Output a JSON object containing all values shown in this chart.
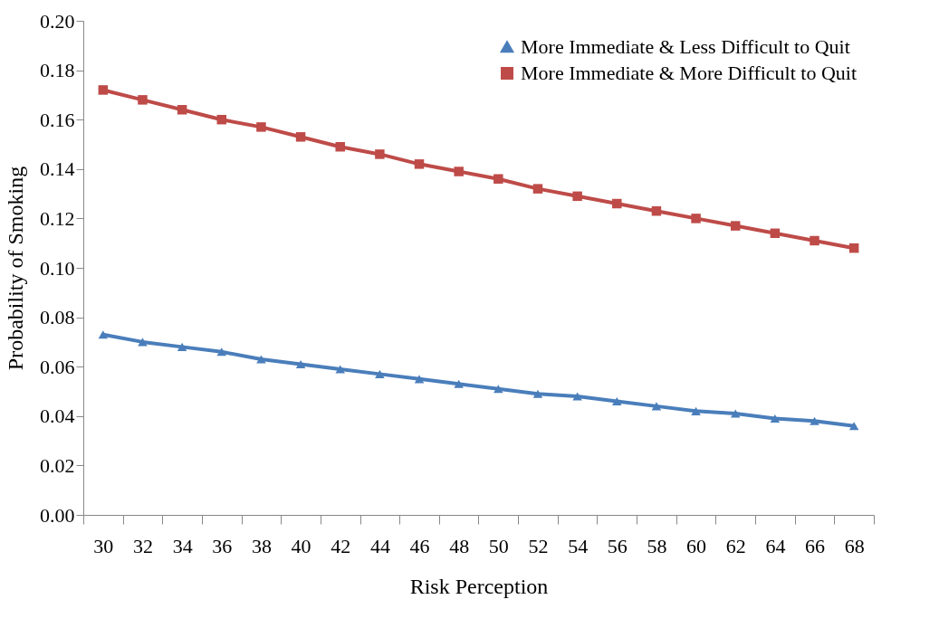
{
  "chart_data": {
    "type": "line",
    "xlabel": "Risk Perception",
    "ylabel": "Probability  of  Smoking",
    "categories": [
      "30",
      "32",
      "34",
      "36",
      "38",
      "40",
      "42",
      "44",
      "46",
      "48",
      "50",
      "52",
      "54",
      "56",
      "58",
      "60",
      "62",
      "64",
      "66",
      "68"
    ],
    "series": [
      {
        "name": "More Immediate & Less Difficult to Quit",
        "color": "#4a7ebb",
        "marker": "triangle",
        "values": [
          0.073,
          0.07,
          0.068,
          0.066,
          0.063,
          0.061,
          0.059,
          0.057,
          0.055,
          0.053,
          0.051,
          0.049,
          0.048,
          0.046,
          0.044,
          0.042,
          0.041,
          0.039,
          0.038,
          0.036
        ]
      },
      {
        "name": "More Immediate & More Difficult to Quit",
        "color": "#be4b48",
        "marker": "square",
        "values": [
          0.172,
          0.168,
          0.164,
          0.16,
          0.157,
          0.153,
          0.149,
          0.146,
          0.142,
          0.139,
          0.136,
          0.132,
          0.129,
          0.126,
          0.123,
          0.12,
          0.117,
          0.114,
          0.111,
          0.108
        ]
      }
    ],
    "ylim": [
      0,
      0.2
    ],
    "yticks": [
      {
        "value": 0,
        "label": "0.00"
      },
      {
        "value": 0.02,
        "label": "0.02"
      },
      {
        "value": 0.04,
        "label": "0.04"
      },
      {
        "value": 0.06,
        "label": "0.06"
      },
      {
        "value": 0.08,
        "label": "0.08"
      },
      {
        "value": 0.1,
        "label": "0.10"
      },
      {
        "value": 0.12,
        "label": "0.12"
      },
      {
        "value": 0.14,
        "label": "0.14"
      },
      {
        "value": 0.16,
        "label": "0.16"
      },
      {
        "value": 0.18,
        "label": "0.18"
      },
      {
        "value": 0.2,
        "label": "0.20"
      }
    ],
    "grid": false,
    "legend": "top right",
    "line_style": "solid"
  }
}
